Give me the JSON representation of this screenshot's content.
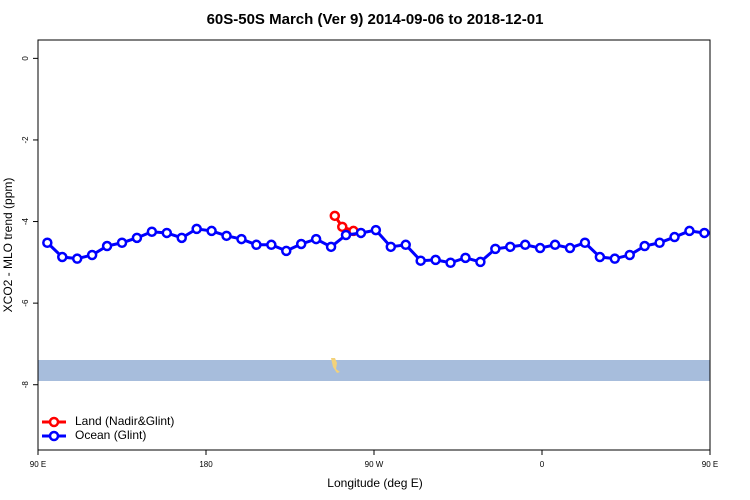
{
  "chart_data": {
    "type": "line",
    "title": "60S-50S March (Ver 9)   2014-09-06 to 2018-12-01",
    "x_label": "Longitude (deg E)",
    "y_label": "XCO2 - MLO trend (ppm)",
    "xlim": [
      90,
      450
    ],
    "xticks": [
      {
        "value": 90,
        "label": "90 E"
      },
      {
        "value": 180,
        "label": "180"
      },
      {
        "value": 270,
        "label": "90 W"
      },
      {
        "value": 360,
        "label": "0"
      },
      {
        "value": 450,
        "label": "90 E"
      }
    ],
    "ylim": [
      -9.6,
      0.45
    ],
    "yticks": [
      0,
      -2,
      -4,
      -6,
      -8
    ],
    "legend": "bottom-left",
    "series": [
      {
        "name": "Land (Nadir&Glint)",
        "color": "#ff0000",
        "x": [
          249,
          253,
          259
        ],
        "values": [
          -3.86,
          -4.13,
          -4.23
        ]
      },
      {
        "name": "Ocean (Glint)",
        "color": "#0000ff",
        "x": [
          95,
          103,
          111,
          119,
          127,
          135,
          143,
          151,
          159,
          167,
          175,
          183,
          191,
          199,
          207,
          215,
          223,
          231,
          239,
          247,
          255,
          263,
          271,
          279,
          287,
          295,
          303,
          311,
          319,
          327,
          335,
          343,
          351,
          359,
          367,
          375,
          383,
          391,
          399,
          407,
          415,
          423,
          431,
          439,
          447
        ],
        "values": [
          -4.52,
          -4.87,
          -4.91,
          -4.82,
          -4.6,
          -4.52,
          -4.4,
          -4.25,
          -4.28,
          -4.4,
          -4.18,
          -4.23,
          -4.35,
          -4.43,
          -4.57,
          -4.57,
          -4.72,
          -4.55,
          -4.43,
          -4.62,
          -4.33,
          -4.28,
          -4.21,
          -4.62,
          -4.57,
          -4.96,
          -4.94,
          -5.01,
          -4.89,
          -4.99,
          -4.67,
          -4.62,
          -4.57,
          -4.65,
          -4.57,
          -4.65,
          -4.52,
          -4.87,
          -4.91,
          -4.82,
          -4.6,
          -4.52,
          -4.38,
          -4.23,
          -4.28
        ]
      }
    ]
  }
}
